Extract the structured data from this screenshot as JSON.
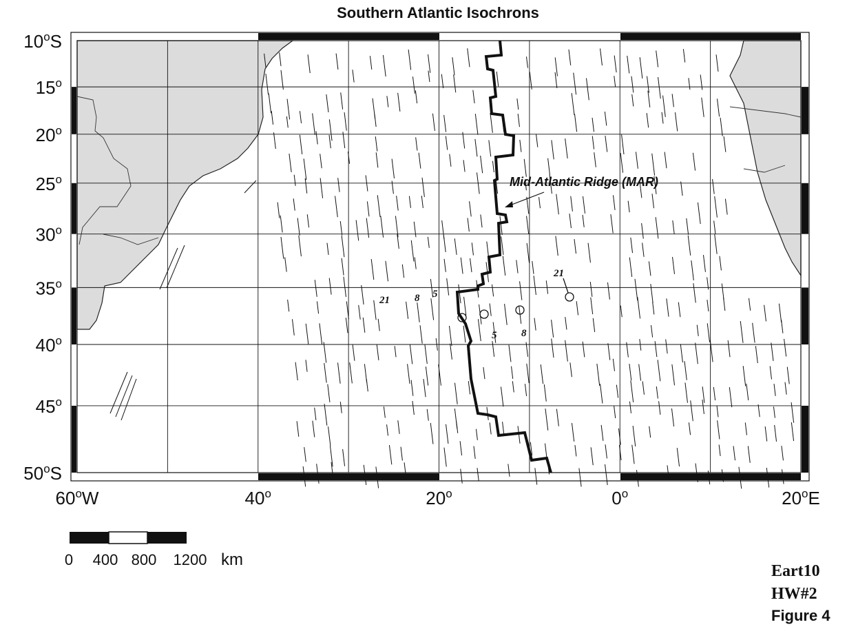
{
  "header": {
    "title": "Southern Atlantic Isochrons"
  },
  "map": {
    "lat_labels": [
      {
        "number": "10",
        "mark": "o",
        "suffix": "S"
      },
      {
        "number": "15",
        "mark": "o"
      },
      {
        "number": "20",
        "mark": "o"
      },
      {
        "number": "25",
        "mark": "o"
      },
      {
        "number": "30",
        "mark": "o"
      },
      {
        "number": "35",
        "mark": "o"
      },
      {
        "number": "40",
        "mark": "o"
      },
      {
        "number": "45",
        "mark": "o"
      },
      {
        "number": "50",
        "mark": "o",
        "suffix": "S"
      }
    ],
    "lon_labels": [
      {
        "number": "60",
        "mark": "o",
        "suffix": "W"
      },
      {
        "number": "40",
        "mark": "o"
      },
      {
        "number": "20",
        "mark": "o"
      },
      {
        "number": "0",
        "mark": "o"
      },
      {
        "number": "20",
        "mark": "o",
        "suffix": "E"
      }
    ]
  },
  "annotations": {
    "ridge": "Mid-Atlantic Ridge (MAR)",
    "west_ages": [
      "21",
      "8",
      "5"
    ],
    "east_ages": [
      "5",
      "8",
      "21"
    ]
  },
  "scale_bar": {
    "labels": [
      "0",
      "400",
      "800",
      "1200"
    ],
    "unit": "km"
  },
  "footer": {
    "course": "Eart10",
    "assignment": "HW#2",
    "figure": "Figure 4"
  }
}
